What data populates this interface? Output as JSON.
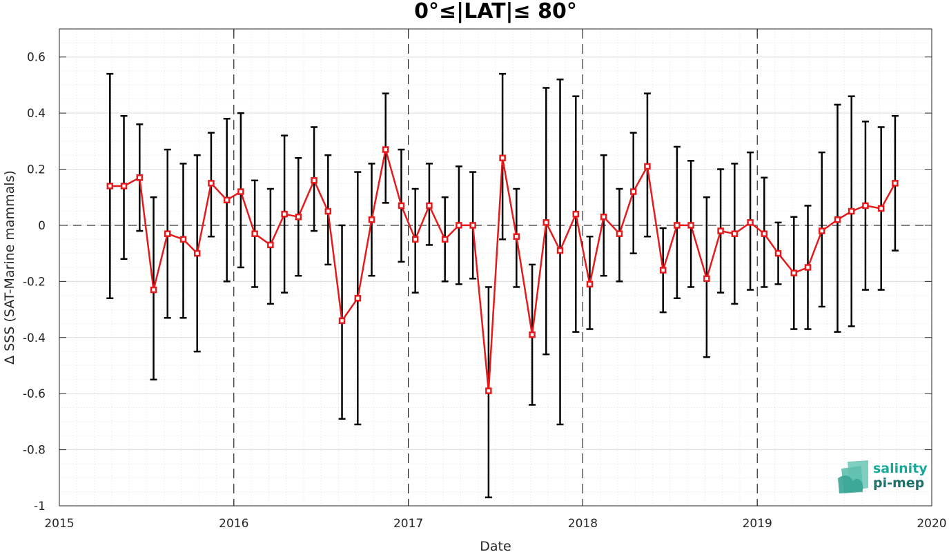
{
  "chart_data": {
    "type": "line",
    "title": "0°≤|LAT|≤ 80°",
    "xlabel": "Date",
    "ylabel": "Δ SSS (SAT-Marine mammals)",
    "xlim": [
      2015,
      2020
    ],
    "ylim": [
      -1,
      0.7
    ],
    "x_ticks": [
      "2015",
      "2016",
      "2017",
      "2018",
      "2019",
      "2020"
    ],
    "y_ticks": [
      "0.6",
      "0.4",
      "0.2",
      "0",
      "-0.2",
      "-0.4",
      "-0.6",
      "-0.8",
      "-1"
    ],
    "grid": true,
    "minor_grid": true,
    "year_separators": "dashed vertical lines at each year",
    "zero_line": "dashed horizontal line at 0",
    "series": [
      {
        "color": "#e41a1c",
        "marker": "square",
        "error_bar_color": "#000000",
        "points": [
          {
            "x": 2015.29,
            "y": 0.14,
            "lo": -0.26,
            "hi": 0.54
          },
          {
            "x": 2015.37,
            "y": 0.14,
            "lo": -0.12,
            "hi": 0.39
          },
          {
            "x": 2015.46,
            "y": 0.17,
            "lo": -0.02,
            "hi": 0.36
          },
          {
            "x": 2015.54,
            "y": -0.23,
            "lo": -0.55,
            "hi": 0.1
          },
          {
            "x": 2015.62,
            "y": -0.03,
            "lo": -0.33,
            "hi": 0.27
          },
          {
            "x": 2015.71,
            "y": -0.05,
            "lo": -0.33,
            "hi": 0.22
          },
          {
            "x": 2015.79,
            "y": -0.1,
            "lo": -0.45,
            "hi": 0.25
          },
          {
            "x": 2015.87,
            "y": 0.15,
            "lo": -0.04,
            "hi": 0.33
          },
          {
            "x": 2015.96,
            "y": 0.09,
            "lo": -0.2,
            "hi": 0.38
          },
          {
            "x": 2016.04,
            "y": 0.12,
            "lo": -0.15,
            "hi": 0.4
          },
          {
            "x": 2016.12,
            "y": -0.03,
            "lo": -0.22,
            "hi": 0.16
          },
          {
            "x": 2016.21,
            "y": -0.07,
            "lo": -0.28,
            "hi": 0.13
          },
          {
            "x": 2016.29,
            "y": 0.04,
            "lo": -0.24,
            "hi": 0.32
          },
          {
            "x": 2016.37,
            "y": 0.03,
            "lo": -0.18,
            "hi": 0.24
          },
          {
            "x": 2016.46,
            "y": 0.16,
            "lo": -0.02,
            "hi": 0.35
          },
          {
            "x": 2016.54,
            "y": 0.05,
            "lo": -0.14,
            "hi": 0.25
          },
          {
            "x": 2016.62,
            "y": -0.34,
            "lo": -0.69,
            "hi": 0.0
          },
          {
            "x": 2016.71,
            "y": -0.26,
            "lo": -0.71,
            "hi": 0.19
          },
          {
            "x": 2016.79,
            "y": 0.02,
            "lo": -0.18,
            "hi": 0.22
          },
          {
            "x": 2016.87,
            "y": 0.27,
            "lo": 0.08,
            "hi": 0.47
          },
          {
            "x": 2016.96,
            "y": 0.07,
            "lo": -0.13,
            "hi": 0.27
          },
          {
            "x": 2017.04,
            "y": -0.05,
            "lo": -0.24,
            "hi": 0.13
          },
          {
            "x": 2017.12,
            "y": 0.07,
            "lo": -0.07,
            "hi": 0.22
          },
          {
            "x": 2017.21,
            "y": -0.05,
            "lo": -0.2,
            "hi": 0.1
          },
          {
            "x": 2017.29,
            "y": 0.0,
            "lo": -0.21,
            "hi": 0.21
          },
          {
            "x": 2017.37,
            "y": 0.0,
            "lo": -0.19,
            "hi": 0.19
          },
          {
            "x": 2017.46,
            "y": -0.59,
            "lo": -0.97,
            "hi": -0.22
          },
          {
            "x": 2017.54,
            "y": 0.24,
            "lo": -0.05,
            "hi": 0.54
          },
          {
            "x": 2017.62,
            "y": -0.04,
            "lo": -0.22,
            "hi": 0.13
          },
          {
            "x": 2017.71,
            "y": -0.39,
            "lo": -0.64,
            "hi": -0.14
          },
          {
            "x": 2017.79,
            "y": 0.01,
            "lo": -0.46,
            "hi": 0.49
          },
          {
            "x": 2017.87,
            "y": -0.09,
            "lo": -0.71,
            "hi": 0.52
          },
          {
            "x": 2017.96,
            "y": 0.04,
            "lo": -0.38,
            "hi": 0.46
          },
          {
            "x": 2018.04,
            "y": -0.21,
            "lo": -0.37,
            "hi": -0.04
          },
          {
            "x": 2018.12,
            "y": 0.03,
            "lo": -0.18,
            "hi": 0.25
          },
          {
            "x": 2018.21,
            "y": -0.03,
            "lo": -0.2,
            "hi": 0.13
          },
          {
            "x": 2018.29,
            "y": 0.12,
            "lo": -0.1,
            "hi": 0.33
          },
          {
            "x": 2018.37,
            "y": 0.21,
            "lo": -0.04,
            "hi": 0.47
          },
          {
            "x": 2018.46,
            "y": -0.16,
            "lo": -0.31,
            "hi": -0.01
          },
          {
            "x": 2018.54,
            "y": 0.0,
            "lo": -0.26,
            "hi": 0.28
          },
          {
            "x": 2018.62,
            "y": 0.0,
            "lo": -0.22,
            "hi": 0.23
          },
          {
            "x": 2018.71,
            "y": -0.19,
            "lo": -0.47,
            "hi": 0.1
          },
          {
            "x": 2018.79,
            "y": -0.02,
            "lo": -0.24,
            "hi": 0.2
          },
          {
            "x": 2018.87,
            "y": -0.03,
            "lo": -0.28,
            "hi": 0.22
          },
          {
            "x": 2018.96,
            "y": 0.01,
            "lo": -0.23,
            "hi": 0.26
          },
          {
            "x": 2019.04,
            "y": -0.03,
            "lo": -0.22,
            "hi": 0.17
          },
          {
            "x": 2019.12,
            "y": -0.1,
            "lo": -0.21,
            "hi": 0.01
          },
          {
            "x": 2019.21,
            "y": -0.17,
            "lo": -0.37,
            "hi": 0.03
          },
          {
            "x": 2019.29,
            "y": -0.15,
            "lo": -0.37,
            "hi": 0.07
          },
          {
            "x": 2019.37,
            "y": -0.02,
            "lo": -0.29,
            "hi": 0.26
          },
          {
            "x": 2019.46,
            "y": 0.02,
            "lo": -0.38,
            "hi": 0.43
          },
          {
            "x": 2019.54,
            "y": 0.05,
            "lo": -0.36,
            "hi": 0.46
          },
          {
            "x": 2019.62,
            "y": 0.07,
            "lo": -0.23,
            "hi": 0.37
          },
          {
            "x": 2019.71,
            "y": 0.06,
            "lo": -0.23,
            "hi": 0.35
          },
          {
            "x": 2019.79,
            "y": 0.15,
            "lo": -0.09,
            "hi": 0.39
          }
        ]
      }
    ]
  },
  "logo": {
    "line1": "salinity",
    "line2": "pi-mep",
    "line1_color": "#1aa89a",
    "line2_color": "#1f6f6a"
  }
}
